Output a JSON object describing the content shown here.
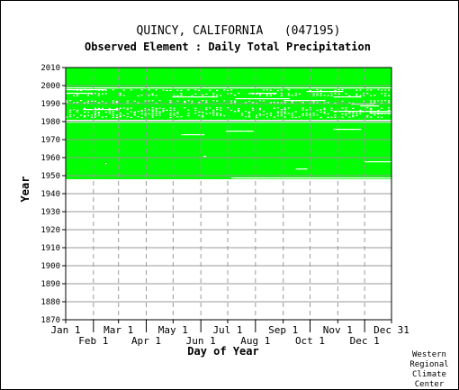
{
  "chart_data": {
    "type": "heatmap",
    "title": "QUINCY, CALIFORNIA   (047195)",
    "subtitle": "Observed Element : Daily Total Precipitation",
    "xlabel": "Day of Year",
    "ylabel": "Year",
    "x_ticks_top": [
      "Jan 1",
      "Mar 1",
      "May 1",
      "Jul 1",
      "Sep 1",
      "Nov 1",
      "Dec 31"
    ],
    "x_ticks_bottom": [
      "Feb 1",
      "Apr 1",
      "Jun 1",
      "Aug 1",
      "Oct 1",
      "Dec 1"
    ],
    "x_tick_days_top": [
      1,
      60,
      121,
      182,
      244,
      305,
      365
    ],
    "x_tick_days_bottom": [
      32,
      91,
      152,
      213,
      274,
      335
    ],
    "y_ticks": [
      1870,
      1880,
      1890,
      1900,
      1910,
      1920,
      1930,
      1940,
      1950,
      1960,
      1970,
      1980,
      1990,
      2000,
      2010
    ],
    "xlim": [
      1,
      365
    ],
    "ylim": [
      1870,
      2010
    ],
    "coverage_color": "#00ff00",
    "gridlines": true,
    "data_start_year": 1948,
    "data_end_year": 2010,
    "missing_segments": [
      {
        "year": 1998,
        "start_day": 1,
        "end_day": 365
      },
      {
        "year": 1997,
        "start_day": 1,
        "end_day": 45
      },
      {
        "year": 1996,
        "start_day": 270,
        "end_day": 310
      },
      {
        "year": 1995,
        "start_day": 1,
        "end_day": 30
      },
      {
        "year": 1995,
        "start_day": 207,
        "end_day": 236
      },
      {
        "year": 1993,
        "start_day": 120,
        "end_day": 170
      },
      {
        "year": 1993,
        "start_day": 300,
        "end_day": 330
      },
      {
        "year": 1992,
        "start_day": 190,
        "end_day": 250
      },
      {
        "year": 1991,
        "start_day": 245,
        "end_day": 290
      },
      {
        "year": 1989,
        "start_day": 320,
        "end_day": 345
      },
      {
        "year": 1988,
        "start_day": 330,
        "end_day": 350
      },
      {
        "year": 1986,
        "start_day": 20,
        "end_day": 60
      },
      {
        "year": 1985,
        "start_day": 300,
        "end_day": 365
      },
      {
        "year": 1984,
        "start_day": 340,
        "end_day": 365
      },
      {
        "year": 1980,
        "start_day": 1,
        "end_day": 365
      },
      {
        "year": 1979,
        "start_day": 1,
        "end_day": 365
      },
      {
        "year": 1975,
        "start_day": 300,
        "end_day": 330
      },
      {
        "year": 1974,
        "start_day": 180,
        "end_day": 210
      },
      {
        "year": 1972,
        "start_day": 130,
        "end_day": 155
      },
      {
        "year": 1960,
        "start_day": 155,
        "end_day": 157
      },
      {
        "year": 1957,
        "start_day": 335,
        "end_day": 365
      },
      {
        "year": 1956,
        "start_day": 45,
        "end_day": 46
      },
      {
        "year": 1953,
        "start_day": 258,
        "end_day": 270
      },
      {
        "year": 1948,
        "start_day": 186,
        "end_day": 365
      }
    ],
    "speckled_years": [
      1997,
      1995,
      1994,
      1991,
      1990,
      1987,
      1986,
      1985,
      1984,
      1983,
      1982
    ]
  },
  "credit": [
    "Western",
    "Regional",
    "Climate",
    "Center"
  ]
}
